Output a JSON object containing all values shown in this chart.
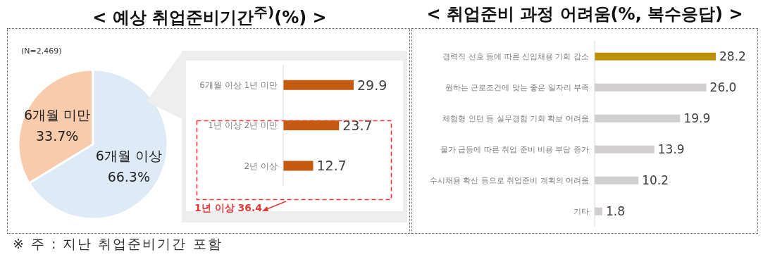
{
  "chart_data": [
    {
      "type": "pie",
      "title": "< 예상 취업준비기간$^{주)}$(%) >",
      "categories": [
        "6개월 미만",
        "6개월 이상"
      ],
      "values": [
        33.7,
        66.3
      ],
      "colors": [
        "#f8cbad",
        "#deebf7"
      ],
      "value_labels": [
        "33.7%",
        "66.3%"
      ],
      "annotations": [
        "(N=2,469)",
        "※ 주 : 지난 취업준비기간 포함"
      ]
    },
    {
      "type": "bar",
      "orientation": "horizontal",
      "categories": [
        "6개월 이상 1년 미만",
        "1년 이상 2년 미만",
        "2년 이상"
      ],
      "values": [
        29.9,
        23.7,
        12.7
      ],
      "color": "#c55a11",
      "data_labels": true,
      "annotations": [
        "1년 이상 36.4"
      ]
    },
    {
      "type": "bar",
      "orientation": "horizontal",
      "title": "< 취업준비 과정 어려움(%, 복수응답) >",
      "categories": [
        "경력직 선호 등에 따른 신입채용 기회 감소",
        "원하는 근로조건에 맞는 좋은 일자리 부족",
        "체험형 인턴 등 실무경험 기회 확보 어려움",
        "물가 급등에 따른 취업 준비 비용 부담 증가",
        "수시채용 확산 등으로 취업준비 계획의 어려움",
        "기타"
      ],
      "values": [
        28.2,
        26.0,
        19.9,
        13.9,
        10.2,
        1.8
      ],
      "colors": [
        "#bf9000",
        "#d0cece",
        "#d0cece",
        "#d0cece",
        "#d0cece",
        "#d0cece"
      ],
      "value_labels": [
        "28.2",
        "26.0",
        "19.9",
        "13.9",
        "10.2",
        "1.8"
      ]
    }
  ]
}
